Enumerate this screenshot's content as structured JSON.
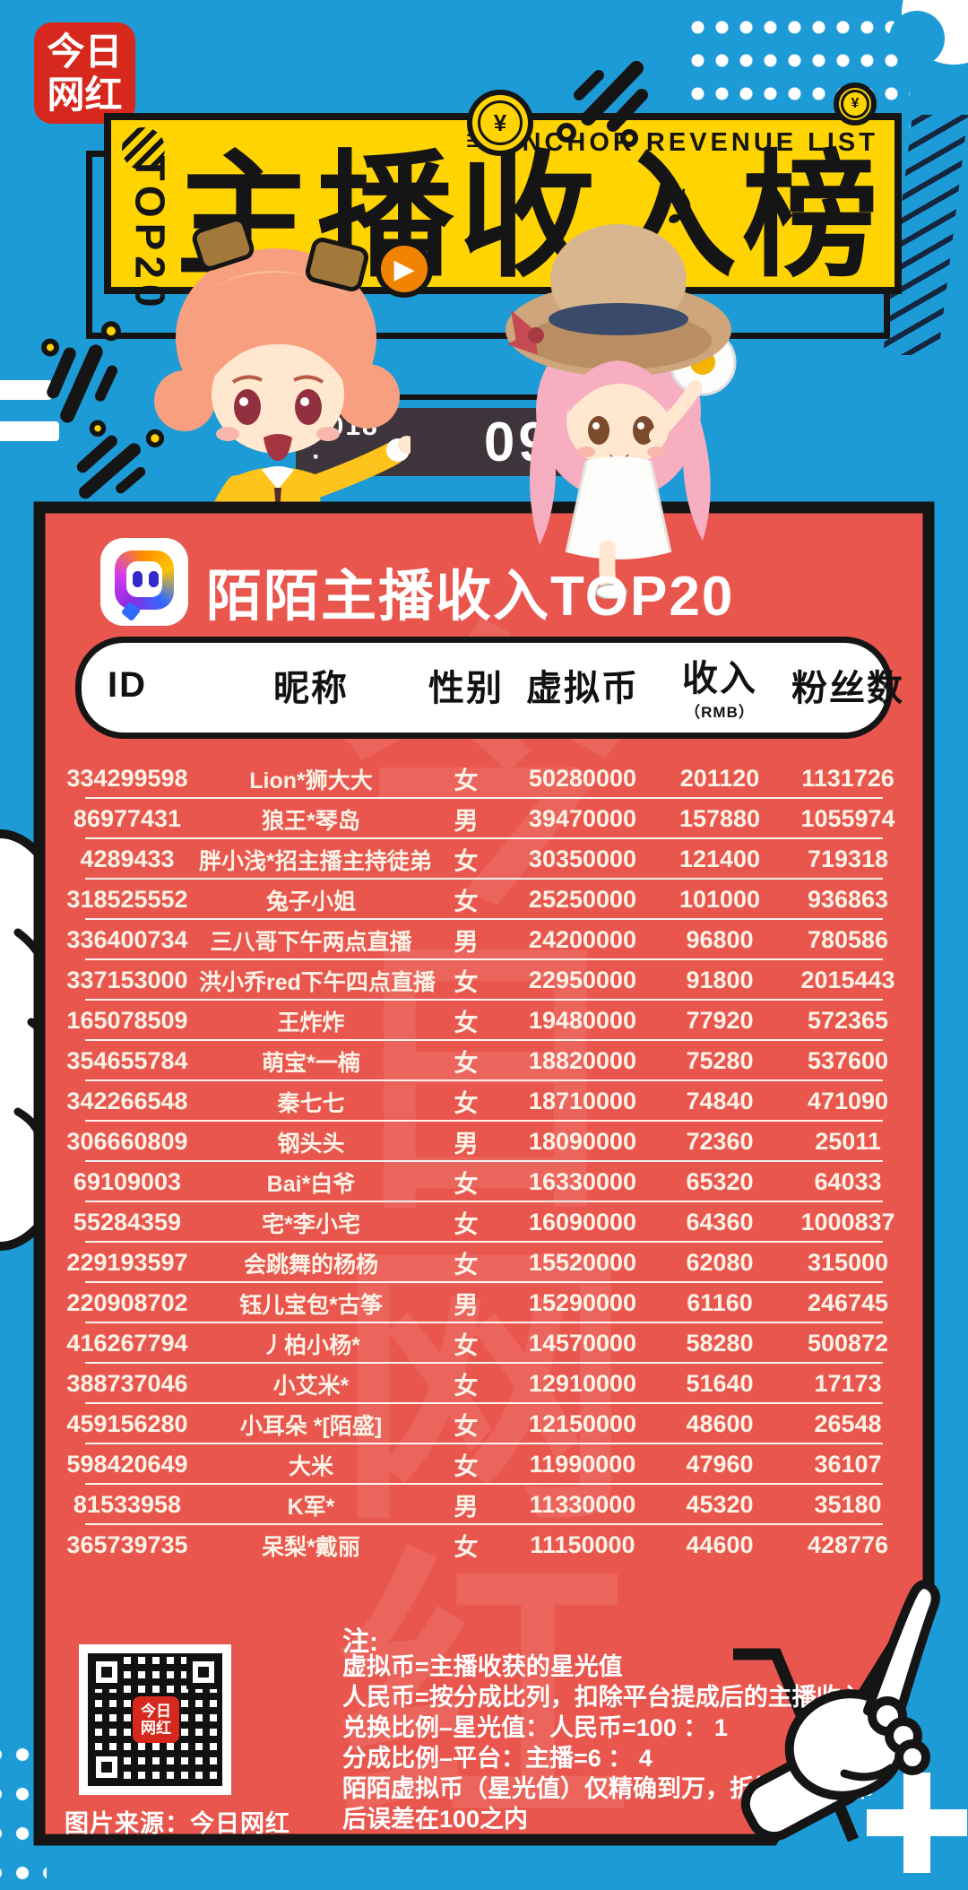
{
  "brand": {
    "logo_line1": "今日",
    "logo_line2": "网红"
  },
  "header": {
    "top_badge": "TOP20",
    "subtitle_en": "ANCHOR  REVENUE  LIST",
    "title": "主播收入榜",
    "currency_symbol": "¥",
    "accent_yellow": "#ffd400",
    "background_blue": "#1d9bd7"
  },
  "date": {
    "year": "2018 ·",
    "day": "09/03"
  },
  "panel": {
    "panel_red": "#e9564e",
    "title": "陌陌主播收入TOP20",
    "watermark": "今日网红",
    "table": {
      "columns": [
        "ID",
        "昵称",
        "性别",
        "虚拟币",
        "收入",
        "粉丝数"
      ],
      "income_unit": "（RMB）",
      "rows": [
        {
          "id": "334299598",
          "nick": "Lion*狮大大",
          "gender": "女",
          "coins": "50280000",
          "income": "201120",
          "fans": "1131726"
        },
        {
          "id": "86977431",
          "nick": "狼王*琴岛",
          "gender": "男",
          "coins": "39470000",
          "income": "157880",
          "fans": "1055974"
        },
        {
          "id": "4289433",
          "nick": "胖小浅*招主播主持徒弟",
          "gender": "女",
          "coins": "30350000",
          "income": "121400",
          "fans": "719318"
        },
        {
          "id": "318525552",
          "nick": "兔子小姐",
          "gender": "女",
          "coins": "25250000",
          "income": "101000",
          "fans": "936863"
        },
        {
          "id": "336400734",
          "nick": "三八哥下午两点直播",
          "gender": "男",
          "coins": "24200000",
          "income": "96800",
          "fans": "780586"
        },
        {
          "id": "337153000",
          "nick": "洪小乔red下午四点直播",
          "gender": "女",
          "coins": "22950000",
          "income": "91800",
          "fans": "2015443"
        },
        {
          "id": "165078509",
          "nick": "王炸炸",
          "gender": "女",
          "coins": "19480000",
          "income": "77920",
          "fans": "572365"
        },
        {
          "id": "354655784",
          "nick": "萌宝*一楠",
          "gender": "女",
          "coins": "18820000",
          "income": "75280",
          "fans": "537600"
        },
        {
          "id": "342266548",
          "nick": "秦七七",
          "gender": "女",
          "coins": "18710000",
          "income": "74840",
          "fans": "471090"
        },
        {
          "id": "306660809",
          "nick": "钢头头",
          "gender": "男",
          "coins": "18090000",
          "income": "72360",
          "fans": "25011"
        },
        {
          "id": "69109003",
          "nick": "Bai*白爷",
          "gender": "女",
          "coins": "16330000",
          "income": "65320",
          "fans": "64033"
        },
        {
          "id": "55284359",
          "nick": "宅*李小宅",
          "gender": "女",
          "coins": "16090000",
          "income": "64360",
          "fans": "1000837"
        },
        {
          "id": "229193597",
          "nick": "会跳舞的杨杨",
          "gender": "女",
          "coins": "15520000",
          "income": "62080",
          "fans": "315000"
        },
        {
          "id": "220908702",
          "nick": "钰儿宝包*古筝",
          "gender": "男",
          "coins": "15290000",
          "income": "61160",
          "fans": "246745"
        },
        {
          "id": "416267794",
          "nick": "丿柏小杨*",
          "gender": "女",
          "coins": "14570000",
          "income": "58280",
          "fans": "500872"
        },
        {
          "id": "388737046",
          "nick": "小艾米*",
          "gender": "女",
          "coins": "12910000",
          "income": "51640",
          "fans": "17173"
        },
        {
          "id": "459156280",
          "nick": "小耳朵 *[陌盛]",
          "gender": "女",
          "coins": "12150000",
          "income": "48600",
          "fans": "26548"
        },
        {
          "id": "598420649",
          "nick": "大米",
          "gender": "女",
          "coins": "11990000",
          "income": "47960",
          "fans": "36107"
        },
        {
          "id": "81533958",
          "nick": "K军*",
          "gender": "男",
          "coins": "11330000",
          "income": "45320",
          "fans": "35180"
        },
        {
          "id": "365739735",
          "nick": "呆梨*戴丽",
          "gender": "女",
          "coins": "11150000",
          "income": "44600",
          "fans": "428776"
        }
      ]
    },
    "notes": {
      "title": "注:",
      "lines": [
        "虚拟币=主播收获的星光值",
        "人民币=按分成比列，扣除平台提成后的主播收入",
        "兑换比例–星光值：人民币=100 ： 1",
        "分成比例–平台：主播=6 ： 4",
        "陌陌虚拟币（星光值）仅精确到万，折算为人民币",
        "后误差在100之内"
      ]
    },
    "source": "图片来源：今日网红"
  }
}
